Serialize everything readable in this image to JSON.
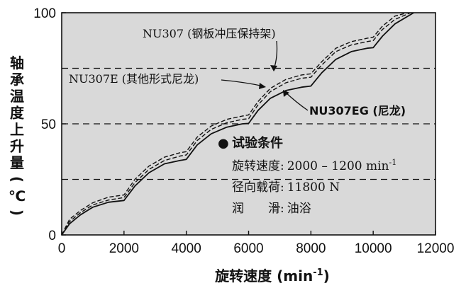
{
  "chart_data": {
    "type": "line",
    "xlabel": "旋转速度 (min-1)",
    "xlabel_main": "旋转速度 (min",
    "xlabel_sup": "-1",
    "xlabel_end": ")",
    "ylabel": [
      "轴",
      "承",
      "温",
      "度",
      "上",
      "升",
      "量",
      "(",
      "℃",
      ")"
    ],
    "xlim": [
      0,
      12000
    ],
    "ylim": [
      0,
      100
    ],
    "x_ticks": [
      "0",
      "2000",
      "4000",
      "6000",
      "8000",
      "10000",
      "12000"
    ],
    "y_ticks": [
      "0",
      "50",
      "100"
    ],
    "ref_lines": [
      25,
      50,
      75
    ],
    "series": [
      {
        "name": "NU307 (钢板冲压保持架)",
        "style": "dashed",
        "points": [
          [
            0,
            0
          ],
          [
            250,
            7
          ],
          [
            600,
            11
          ],
          [
            1000,
            14.5
          ],
          [
            1500,
            17
          ],
          [
            2000,
            18
          ],
          [
            2000,
            18
          ],
          [
            2350,
            25
          ],
          [
            2800,
            31
          ],
          [
            3300,
            35
          ],
          [
            3800,
            37
          ],
          [
            4000,
            37.5
          ],
          [
            4350,
            44
          ],
          [
            4800,
            49
          ],
          [
            5300,
            52
          ],
          [
            5800,
            53.5
          ],
          [
            6000,
            54
          ],
          [
            6300,
            60
          ],
          [
            6700,
            66
          ],
          [
            7200,
            70
          ],
          [
            7700,
            72
          ],
          [
            8000,
            72.5
          ],
          [
            8350,
            78
          ],
          [
            8800,
            84
          ],
          [
            9300,
            87
          ],
          [
            9800,
            88.5
          ],
          [
            10000,
            89
          ],
          [
            10300,
            94
          ],
          [
            10700,
            98.5
          ],
          [
            11100,
            100
          ]
        ]
      },
      {
        "name": "NU307E (其他形式尼龙)",
        "style": "dashed",
        "points": [
          [
            0,
            0
          ],
          [
            250,
            6
          ],
          [
            600,
            10
          ],
          [
            1000,
            13.5
          ],
          [
            1500,
            15.7
          ],
          [
            2000,
            16.8
          ],
          [
            2350,
            23.5
          ],
          [
            2800,
            29.5
          ],
          [
            3300,
            33.5
          ],
          [
            3800,
            35.5
          ],
          [
            4000,
            36
          ],
          [
            4350,
            42.5
          ],
          [
            4800,
            47.5
          ],
          [
            5300,
            50.5
          ],
          [
            5800,
            52
          ],
          [
            6000,
            52.3
          ],
          [
            6300,
            58.5
          ],
          [
            6700,
            64.5
          ],
          [
            7200,
            68.5
          ],
          [
            7700,
            70.5
          ],
          [
            8000,
            71
          ],
          [
            8350,
            76.5
          ],
          [
            8800,
            82.5
          ],
          [
            9300,
            85.5
          ],
          [
            9800,
            87
          ],
          [
            10000,
            87.5
          ],
          [
            10300,
            92.5
          ],
          [
            10700,
            97
          ],
          [
            11200,
            100
          ]
        ]
      },
      {
        "name": "NU307EG (尼龙)",
        "style": "solid",
        "points": [
          [
            0,
            0
          ],
          [
            250,
            5
          ],
          [
            600,
            9
          ],
          [
            1000,
            12.5
          ],
          [
            1500,
            14.7
          ],
          [
            2000,
            15.5
          ],
          [
            2350,
            22
          ],
          [
            2800,
            28
          ],
          [
            3300,
            32
          ],
          [
            3800,
            33.5
          ],
          [
            4000,
            34
          ],
          [
            4350,
            40.5
          ],
          [
            4800,
            45.5
          ],
          [
            5300,
            48.5
          ],
          [
            5800,
            50
          ],
          [
            6000,
            50.2
          ],
          [
            6300,
            56
          ],
          [
            6700,
            61.5
          ],
          [
            7200,
            65
          ],
          [
            7700,
            66.5
          ],
          [
            8000,
            67
          ],
          [
            8350,
            73
          ],
          [
            8800,
            79
          ],
          [
            9300,
            82.5
          ],
          [
            9800,
            84
          ],
          [
            10000,
            84.3
          ],
          [
            10300,
            89.5
          ],
          [
            10700,
            95
          ],
          [
            11300,
            100
          ]
        ]
      }
    ],
    "annotations": {
      "nu307": "NU307 (钢板冲压保持架)",
      "nu307e": "NU307E (其他形式尼龙)",
      "nu307eg": "NU307EG (尼龙)"
    },
    "conditions": {
      "bullet": "●",
      "title": "试验条件",
      "speed_label": "旋转速度:",
      "speed_value": "2000 – 1200 min",
      "speed_sup": "-1",
      "load_label": "径向载荷:",
      "load_value": "11800 N",
      "lub_label": "润　　滑:",
      "lub_value": "油浴"
    },
    "colors": {
      "plot_bg": "#d9d9d9",
      "line": "#111111",
      "page_bg": "#ffffff"
    },
    "grid": false,
    "legend": "none"
  }
}
